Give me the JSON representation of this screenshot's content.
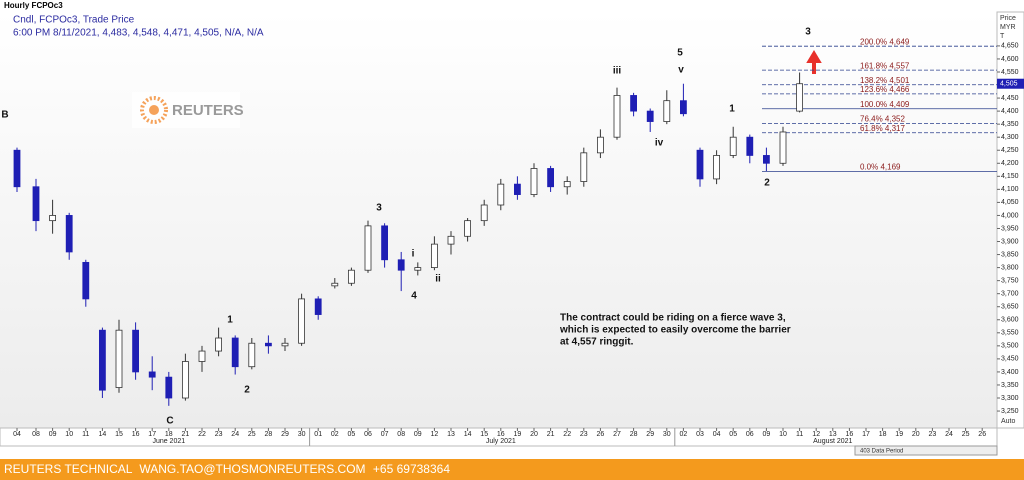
{
  "chart_data": {
    "type": "candlestick",
    "title": "Hourly FCPOc3",
    "subtitle": "Cndl, FCPOc3, Trade Price",
    "info": "6:00 PM 8/11/2021, 4,483, 4,548, 4,471, 4,505, N/A, N/A",
    "y_axis_label": [
      "Price",
      "MYR",
      "T"
    ],
    "categories": [
      "04",
      "08",
      "09",
      "10",
      "11",
      "14",
      "15",
      "16",
      "17",
      "18",
      "21",
      "22",
      "23",
      "24",
      "25",
      "28",
      "29",
      "30",
      "01",
      "02",
      "05",
      "06",
      "07",
      "08",
      "09",
      "12",
      "13",
      "14",
      "15",
      "16",
      "19",
      "20",
      "21",
      "22",
      "23",
      "26",
      "27",
      "28",
      "29",
      "30",
      "02",
      "03",
      "04",
      "05",
      "06",
      "09",
      "10",
      "11",
      "12",
      "13",
      "16",
      "17",
      "18",
      "19",
      "20",
      "23",
      "24",
      "25",
      "26"
    ],
    "months": [
      {
        "label": "June 2021",
        "at": 9
      },
      {
        "label": "July 2021",
        "at": 29
      },
      {
        "label": "August 2021",
        "at": 49
      }
    ],
    "open": [
      4250,
      4110,
      3980,
      4000,
      3820,
      3560,
      3340,
      3560,
      3400,
      3380,
      3300,
      3440,
      3480,
      3530,
      3420,
      3510,
      3500,
      3510,
      3680,
      3730,
      3740,
      3790,
      3960,
      3830,
      3790,
      3800,
      3890,
      3920,
      3980,
      4040,
      4120,
      4080,
      4180,
      4110,
      4130,
      4240,
      4300,
      4460,
      4400,
      4360,
      4440,
      4250,
      4140,
      4230,
      4300,
      4230,
      4200,
      4400,
      null,
      null,
      null,
      null,
      null,
      null,
      null,
      null,
      null,
      null,
      null
    ],
    "high": [
      4260,
      4140,
      4060,
      4010,
      3830,
      3570,
      3600,
      3590,
      3460,
      3400,
      3470,
      3500,
      3570,
      3540,
      3530,
      3540,
      3530,
      3700,
      3690,
      3760,
      3800,
      3980,
      3970,
      3860,
      3820,
      3920,
      3940,
      3990,
      4060,
      4140,
      4150,
      4200,
      4190,
      4150,
      4260,
      4330,
      4490,
      4470,
      4410,
      4480,
      4505,
      4260,
      4250,
      4340,
      4310,
      4260,
      4340,
      4548,
      null,
      null,
      null,
      null,
      null,
      null,
      null,
      null,
      null,
      null,
      null
    ],
    "low": [
      4090,
      3940,
      3930,
      3830,
      3650,
      3300,
      3320,
      3370,
      3330,
      3270,
      3290,
      3400,
      3460,
      3390,
      3410,
      3470,
      3480,
      3500,
      3600,
      3720,
      3730,
      3780,
      3800,
      3710,
      3770,
      3790,
      3850,
      3900,
      3960,
      4020,
      4060,
      4070,
      4090,
      4080,
      4110,
      4220,
      4290,
      4380,
      4320,
      4350,
      4380,
      4110,
      4120,
      4220,
      4200,
      4170,
      4190,
      4395,
      null,
      null,
      null,
      null,
      null,
      null,
      null,
      null,
      null,
      null,
      null
    ],
    "close": [
      4110,
      3980,
      4000,
      3860,
      3680,
      3330,
      3560,
      3400,
      3380,
      3300,
      3440,
      3480,
      3530,
      3420,
      3510,
      3500,
      3510,
      3680,
      3620,
      3740,
      3790,
      3960,
      3830,
      3790,
      3800,
      3890,
      3920,
      3980,
      4040,
      4120,
      4080,
      4180,
      4110,
      4130,
      4240,
      4300,
      4460,
      4400,
      4360,
      4440,
      4390,
      4140,
      4230,
      4300,
      4230,
      4200,
      4320,
      4505,
      null,
      null,
      null,
      null,
      null,
      null,
      null,
      null,
      null,
      null,
      null
    ],
    "up_color": "#ffffff",
    "down_color": "#1f1fb4",
    "ylim": [
      3185,
      4780
    ],
    "yticks": [
      {
        "value": 3250,
        "label": "3,250"
      },
      {
        "value": 3300,
        "label": "3,300"
      },
      {
        "value": 3350,
        "label": "3,350"
      },
      {
        "value": 3400,
        "label": "3,400"
      },
      {
        "value": 3450,
        "label": "3,450"
      },
      {
        "value": 3500,
        "label": "3,500"
      },
      {
        "value": 3550,
        "label": "3,550"
      },
      {
        "value": 3600,
        "label": "3,600"
      },
      {
        "value": 3650,
        "label": "3,650"
      },
      {
        "value": 3700,
        "label": "3,700"
      },
      {
        "value": 3750,
        "label": "3,750"
      },
      {
        "value": 3800,
        "label": "3,800"
      },
      {
        "value": 3850,
        "label": "3,850"
      },
      {
        "value": 3900,
        "label": "3,900"
      },
      {
        "value": 3950,
        "label": "3,950"
      },
      {
        "value": 4000,
        "label": "4,000"
      },
      {
        "value": 4050,
        "label": "4,050"
      },
      {
        "value": 4100,
        "label": "4,100"
      },
      {
        "value": 4150,
        "label": "4,150"
      },
      {
        "value": 4200,
        "label": "4,200"
      },
      {
        "value": 4250,
        "label": "4,250"
      },
      {
        "value": 4300,
        "label": "4,300"
      },
      {
        "value": 4350,
        "label": "4,350"
      },
      {
        "value": 4400,
        "label": "4,400"
      },
      {
        "value": 4450,
        "label": "4,450"
      },
      {
        "value": 4500,
        "label": "4,500"
      },
      {
        "value": 4550,
        "label": "4,550"
      },
      {
        "value": 4600,
        "label": "4,600"
      },
      {
        "value": 4650,
        "label": "4,650"
      }
    ],
    "last_price": {
      "value": 4505,
      "label": "4,505"
    },
    "fib_levels": [
      {
        "label": "200.0% 4,649",
        "value": 4649,
        "solid": false
      },
      {
        "label": "161.8% 4,557",
        "value": 4557,
        "solid": false
      },
      {
        "label": "138.2% 4,501",
        "value": 4501,
        "solid": false
      },
      {
        "label": "123.6% 4,466",
        "value": 4466,
        "solid": false
      },
      {
        "label": "100.0% 4,409",
        "value": 4409,
        "solid": true
      },
      {
        "label": "76.4% 4,352",
        "value": 4352,
        "solid": false
      },
      {
        "label": "61.8% 4,317",
        "value": 4317,
        "solid": false
      },
      {
        "label": "0.0% 4,169",
        "value": 4169,
        "solid": true
      }
    ],
    "wave_labels": [
      "B",
      "C",
      "1",
      "2",
      "3",
      "i",
      "ii",
      "4",
      "iii",
      "iv",
      "5",
      "v",
      "1",
      "2",
      "3"
    ],
    "note": [
      "The contract could be riding on a fierce wave 3,",
      "which is expected to easily overcome the barrier",
      "at 4,557 ringgit."
    ],
    "logo": "REUTERS",
    "auto_label": "Auto",
    "data_period": "403 Data Period"
  },
  "footer": [
    "REUTERS TECHNICAL",
    "WANG.TAO@THOSMONREUTERS.COM",
    "+65 69738364"
  ]
}
